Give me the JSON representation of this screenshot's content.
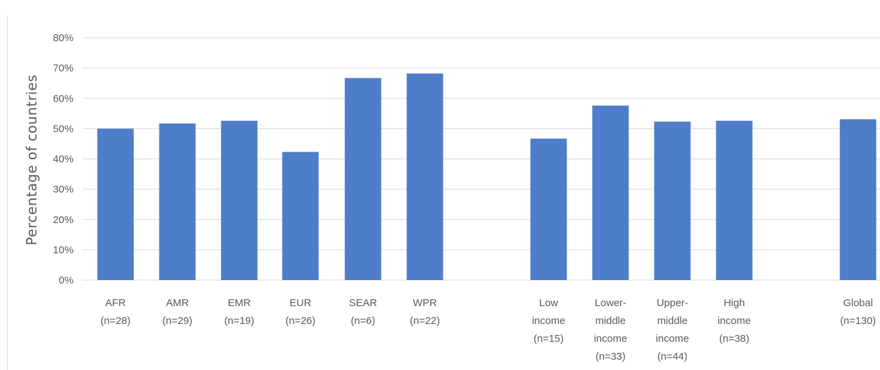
{
  "chart_data": {
    "type": "bar",
    "ylabel": "Percentage of countries",
    "ylim": [
      0,
      80
    ],
    "yticks": [
      "0%",
      "10%",
      "20%",
      "30%",
      "40%",
      "50%",
      "60%",
      "70%",
      "80%"
    ],
    "grid": true,
    "bar_color": "#4e7dc9",
    "categories": [
      {
        "lines": [
          "AFR",
          "(n=28)"
        ],
        "value": 50
      },
      {
        "lines": [
          "AMR",
          "(n=29)"
        ],
        "value": 51.7
      },
      {
        "lines": [
          "EMR",
          "(n=19)"
        ],
        "value": 52.6
      },
      {
        "lines": [
          "EUR",
          "(n=26)"
        ],
        "value": 42.3
      },
      {
        "lines": [
          "SEAR",
          "(n=6)"
        ],
        "value": 66.7
      },
      {
        "lines": [
          "WPR",
          "(n=22)"
        ],
        "value": 68.2
      },
      {
        "lines": [
          "Low",
          "income",
          "(n=15)"
        ],
        "value": 46.7
      },
      {
        "lines": [
          "Lower-",
          "middle",
          "income",
          "(n=33)"
        ],
        "value": 57.6
      },
      {
        "lines": [
          "Upper-",
          "middle",
          "income",
          "(n=44)"
        ],
        "value": 52.3
      },
      {
        "lines": [
          "High",
          "income",
          "(n=38)"
        ],
        "value": 52.6
      },
      {
        "lines": [
          "Global",
          "(n=130)"
        ],
        "value": 53.1
      }
    ]
  }
}
